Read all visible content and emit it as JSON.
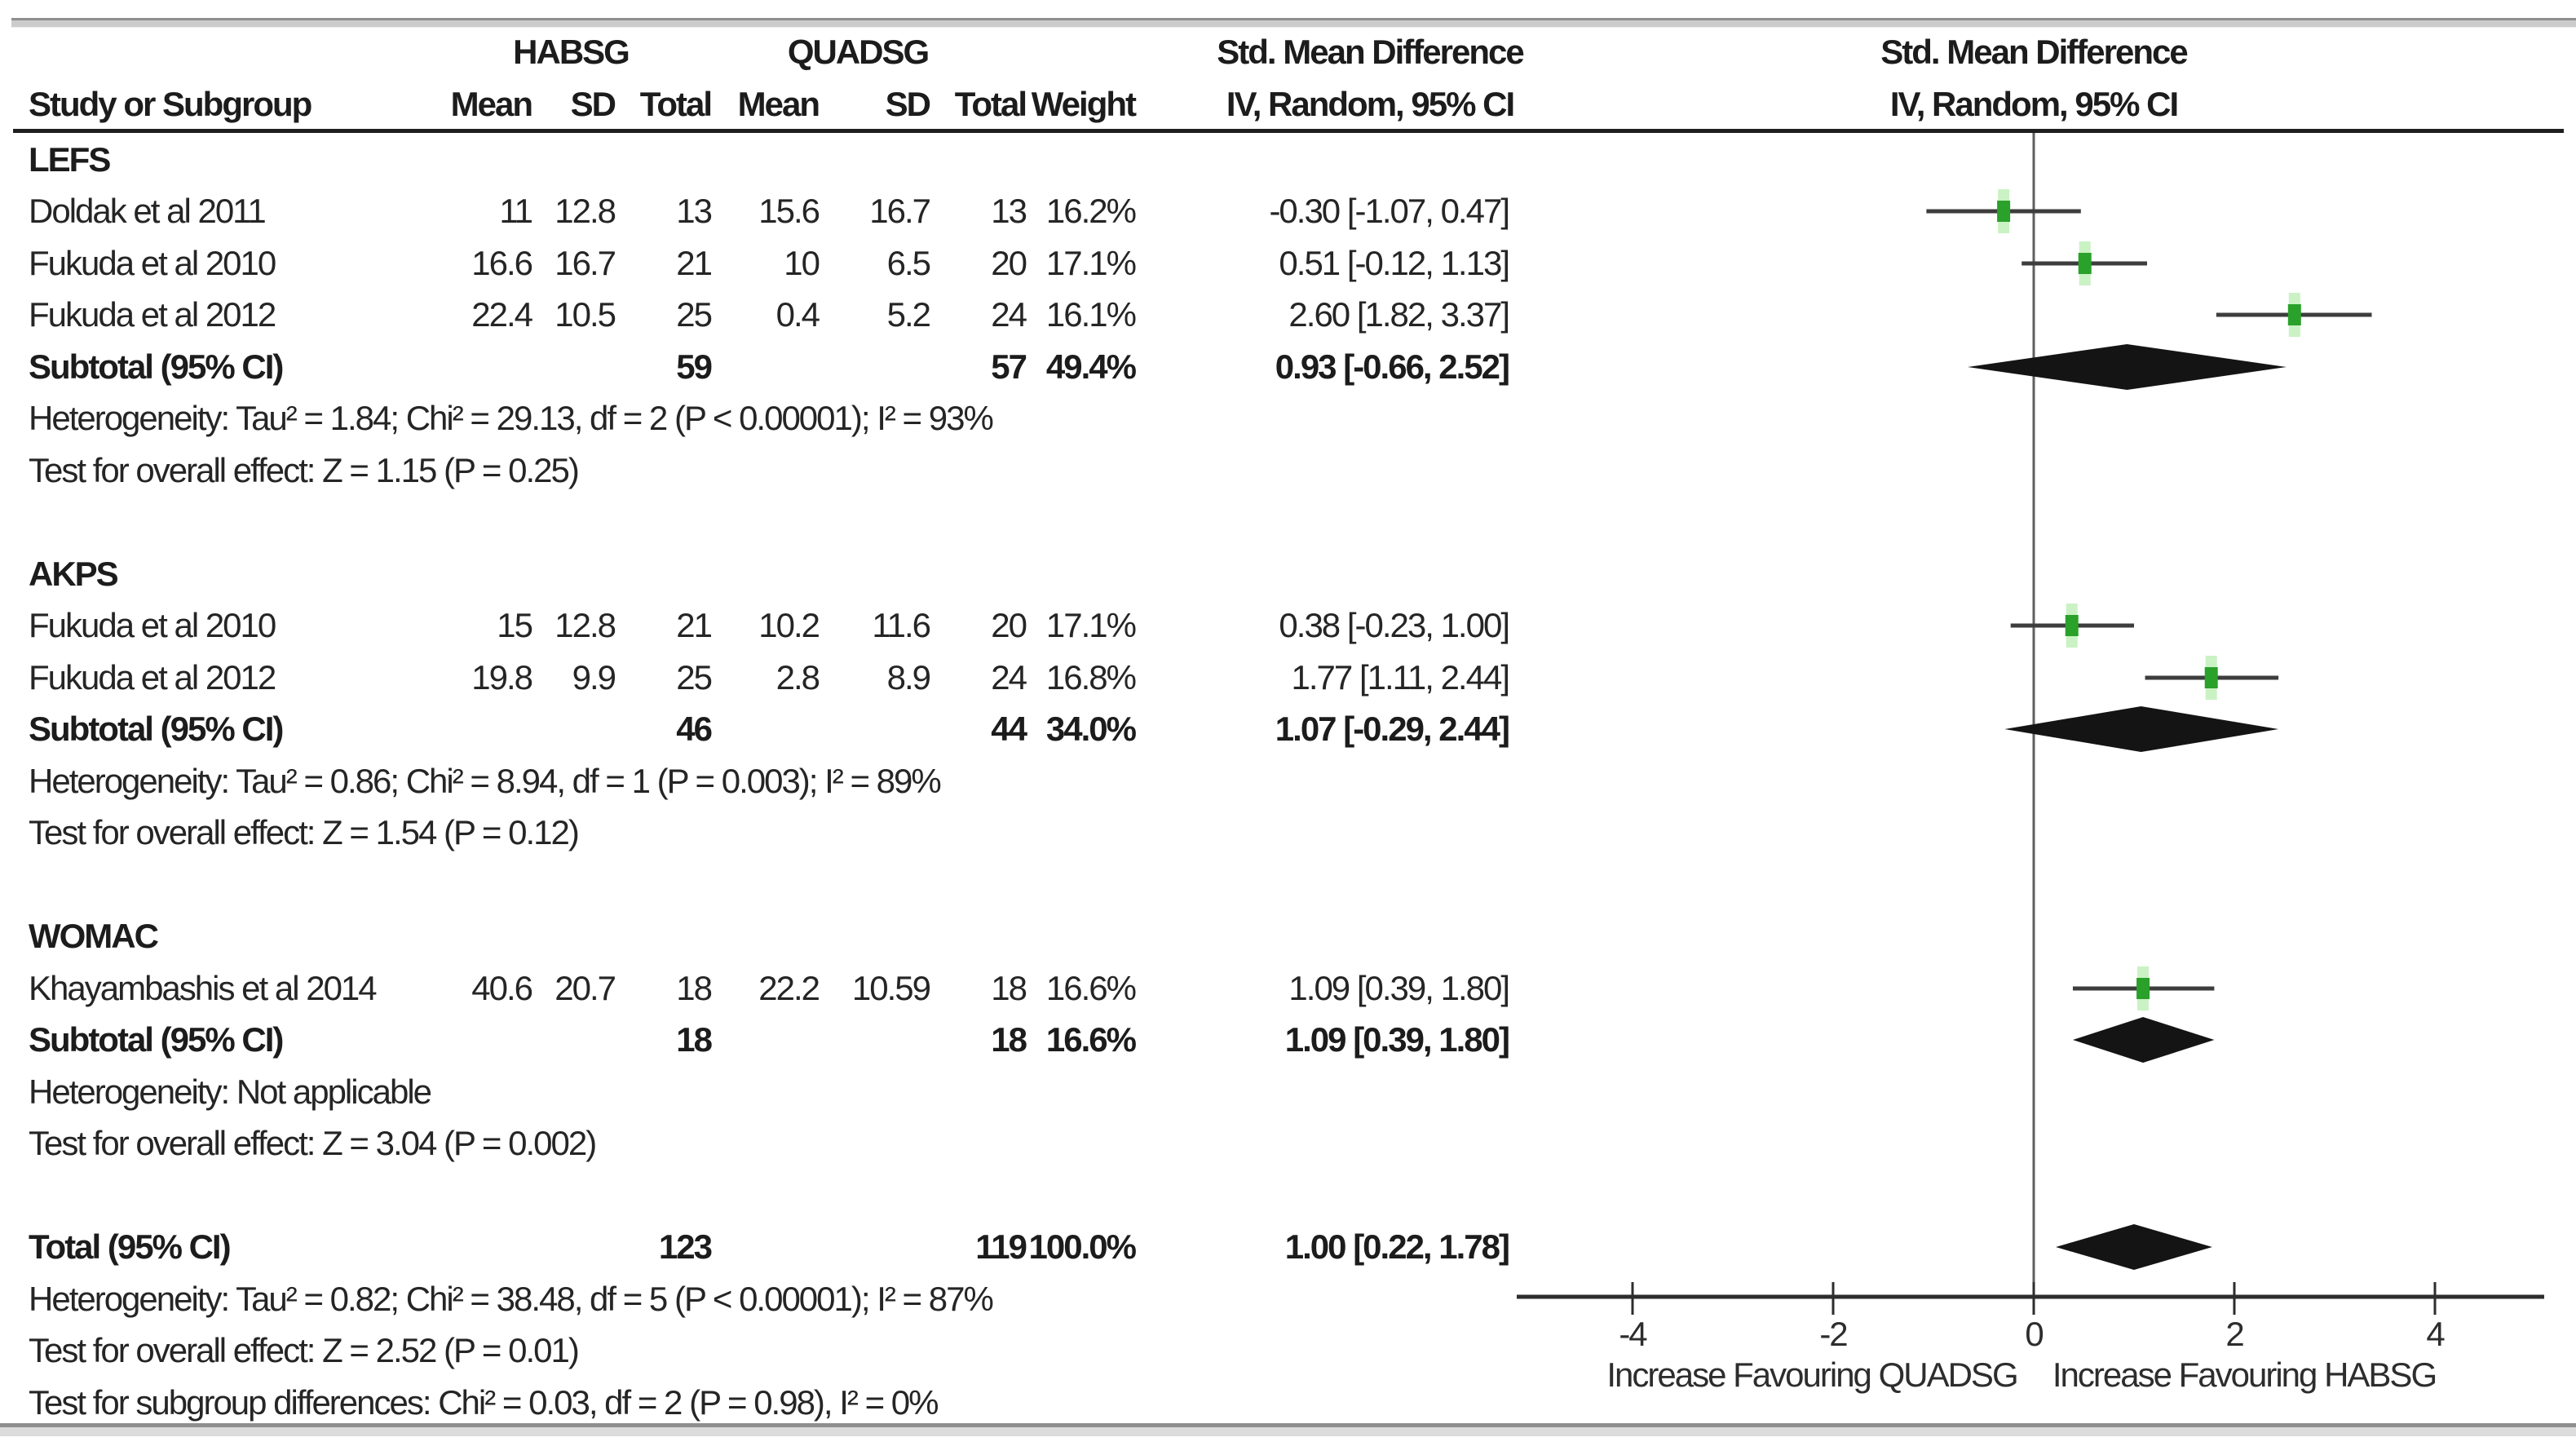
{
  "header": {
    "study_col": "Study or Subgroup",
    "group1": "HABSG",
    "group2": "QUADSG",
    "mean": "Mean",
    "sd": "SD",
    "total": "Total",
    "weight": "Weight",
    "effect_line1": "Std. Mean Difference",
    "effect_line2": "IV, Random, 95% CI",
    "plot_line1": "Std. Mean Difference",
    "plot_line2": "IV, Random, 95% CI"
  },
  "sections": [
    {
      "name": "LEFS",
      "studies": [
        {
          "label": "Doldak et al 2011",
          "mean1": "11",
          "sd1": "12.8",
          "total1": "13",
          "mean2": "15.6",
          "sd2": "16.7",
          "total2": "13",
          "weight": "16.2%",
          "ci_text": "-0.30 [-1.07, 0.47]",
          "est": -0.3,
          "lo": -1.07,
          "hi": 0.47
        },
        {
          "label": "Fukuda et al 2010",
          "mean1": "16.6",
          "sd1": "16.7",
          "total1": "21",
          "mean2": "10",
          "sd2": "6.5",
          "total2": "20",
          "weight": "17.1%",
          "ci_text": "0.51 [-0.12, 1.13]",
          "est": 0.51,
          "lo": -0.12,
          "hi": 1.13
        },
        {
          "label": "Fukuda et al 2012",
          "mean1": "22.4",
          "sd1": "10.5",
          "total1": "25",
          "mean2": "0.4",
          "sd2": "5.2",
          "total2": "24",
          "weight": "16.1%",
          "ci_text": "2.60 [1.82, 3.37]",
          "est": 2.6,
          "lo": 1.82,
          "hi": 3.37
        }
      ],
      "subtotal": {
        "label": "Subtotal (95% CI)",
        "total1": "59",
        "total2": "57",
        "weight": "49.4%",
        "ci_text": "0.93 [-0.66, 2.52]",
        "est": 0.93,
        "lo": -0.66,
        "hi": 2.52
      },
      "heterogeneity": "Heterogeneity: Tau² = 1.84; Chi² = 29.13, df = 2 (P < 0.00001); I² = 93%",
      "overall_effect": "Test for overall effect: Z = 1.15 (P = 0.25)"
    },
    {
      "name": "AKPS",
      "studies": [
        {
          "label": "Fukuda et al 2010",
          "mean1": "15",
          "sd1": "12.8",
          "total1": "21",
          "mean2": "10.2",
          "sd2": "11.6",
          "total2": "20",
          "weight": "17.1%",
          "ci_text": "0.38 [-0.23, 1.00]",
          "est": 0.38,
          "lo": -0.23,
          "hi": 1.0
        },
        {
          "label": "Fukuda et al 2012",
          "mean1": "19.8",
          "sd1": "9.9",
          "total1": "25",
          "mean2": "2.8",
          "sd2": "8.9",
          "total2": "24",
          "weight": "16.8%",
          "ci_text": "1.77 [1.11, 2.44]",
          "est": 1.77,
          "lo": 1.11,
          "hi": 2.44
        }
      ],
      "subtotal": {
        "label": "Subtotal (95% CI)",
        "total1": "46",
        "total2": "44",
        "weight": "34.0%",
        "ci_text": "1.07 [-0.29, 2.44]",
        "est": 1.07,
        "lo": -0.29,
        "hi": 2.44
      },
      "heterogeneity": "Heterogeneity: Tau² = 0.86; Chi² = 8.94, df = 1 (P = 0.003); I² = 89%",
      "overall_effect": "Test for overall effect: Z = 1.54 (P = 0.12)"
    },
    {
      "name": "WOMAC",
      "studies": [
        {
          "label": "Khayambashis et al 2014",
          "mean1": "40.6",
          "sd1": "20.7",
          "total1": "18",
          "mean2": "22.2",
          "sd2": "10.59",
          "total2": "18",
          "weight": "16.6%",
          "ci_text": "1.09 [0.39, 1.80]",
          "est": 1.09,
          "lo": 0.39,
          "hi": 1.8
        }
      ],
      "subtotal": {
        "label": "Subtotal (95% CI)",
        "total1": "18",
        "total2": "18",
        "weight": "16.6%",
        "ci_text": "1.09 [0.39, 1.80]",
        "est": 1.09,
        "lo": 0.39,
        "hi": 1.8
      },
      "heterogeneity": "Heterogeneity: Not applicable",
      "overall_effect": "Test for overall effect: Z = 3.04 (P = 0.002)"
    }
  ],
  "total": {
    "row": {
      "label": "Total (95% CI)",
      "total1": "123",
      "total2": "119",
      "weight": "100.0%",
      "ci_text": "1.00 [0.22, 1.78]",
      "est": 1.0,
      "lo": 0.22,
      "hi": 1.78
    },
    "heterogeneity": "Heterogeneity: Tau² = 0.82; Chi² = 38.48, df = 5 (P < 0.00001); I² = 87%",
    "overall_effect": "Test for overall effect: Z = 2.52 (P = 0.01)",
    "subgroup_test": "Test for subgroup differences: Chi² = 0.03, df = 2 (P = 0.98), I² = 0%"
  },
  "axis": {
    "tick_values": [
      -4,
      -2,
      0,
      2,
      4
    ],
    "tick_labels": [
      "-4",
      "-2",
      "0",
      "2",
      "4"
    ],
    "label_left": "Increase Favouring QUADSG",
    "label_right": "Increase Favouring HABSG"
  },
  "colors": {
    "marker_green": "#2aa12a",
    "marker_halo": "#b8edb0",
    "diamond_black": "#141414",
    "ci_line": "#3d3d3d",
    "axis_line": "#2d2d2d",
    "zero_line": "#5f5f5f"
  },
  "chart_data": {
    "type": "forest",
    "effect_measure": "Std. Mean Difference",
    "model": "IV, Random, 95% CI",
    "xlim": [
      -5.1,
      5.1
    ],
    "ticks": [
      -4,
      -2,
      0,
      2,
      4
    ],
    "xlabel_left": "Increase Favouring QUADSG",
    "xlabel_right": "Increase Favouring HABSG",
    "groups": [
      {
        "name": "LEFS",
        "studies": [
          {
            "label": "Doldak et al 2011",
            "est": -0.3,
            "lo": -1.07,
            "hi": 0.47,
            "weight_pct": 16.2
          },
          {
            "label": "Fukuda et al 2010",
            "est": 0.51,
            "lo": -0.12,
            "hi": 1.13,
            "weight_pct": 17.1
          },
          {
            "label": "Fukuda et al 2012",
            "est": 2.6,
            "lo": 1.82,
            "hi": 3.37,
            "weight_pct": 16.1
          }
        ],
        "subtotal": {
          "est": 0.93,
          "lo": -0.66,
          "hi": 2.52,
          "weight_pct": 49.4,
          "n1": 59,
          "n2": 57
        }
      },
      {
        "name": "AKPS",
        "studies": [
          {
            "label": "Fukuda et al 2010",
            "est": 0.38,
            "lo": -0.23,
            "hi": 1.0,
            "weight_pct": 17.1
          },
          {
            "label": "Fukuda et al 2012",
            "est": 1.77,
            "lo": 1.11,
            "hi": 2.44,
            "weight_pct": 16.8
          }
        ],
        "subtotal": {
          "est": 1.07,
          "lo": -0.29,
          "hi": 2.44,
          "weight_pct": 34.0,
          "n1": 46,
          "n2": 44
        }
      },
      {
        "name": "WOMAC",
        "studies": [
          {
            "label": "Khayambashis et al 2014",
            "est": 1.09,
            "lo": 0.39,
            "hi": 1.8,
            "weight_pct": 16.6
          }
        ],
        "subtotal": {
          "est": 1.09,
          "lo": 0.39,
          "hi": 1.8,
          "weight_pct": 16.6,
          "n1": 18,
          "n2": 18
        }
      }
    ],
    "overall": {
      "est": 1.0,
      "lo": 0.22,
      "hi": 1.78,
      "weight_pct": 100.0,
      "n1": 123,
      "n2": 119
    }
  }
}
